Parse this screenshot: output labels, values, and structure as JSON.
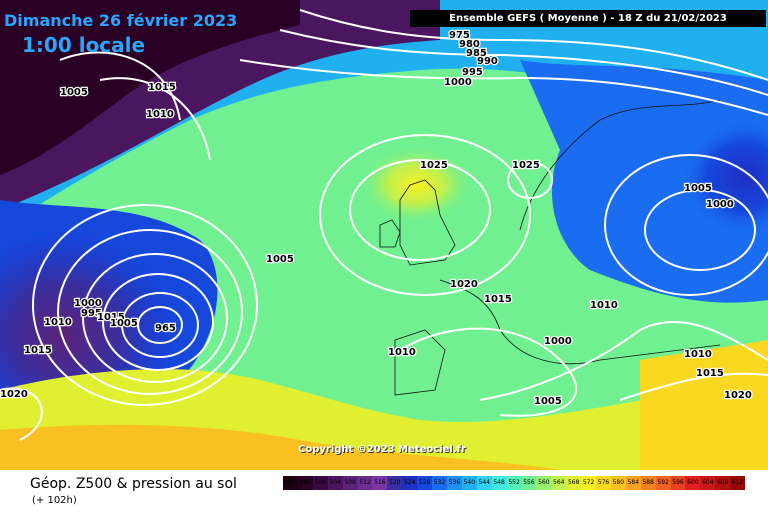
{
  "title": {
    "date": "Dimanche 26 février 2023",
    "time": "1:00 locale"
  },
  "header": {
    "banner": "Ensemble GEFS  ( Moyenne )  -  18 Z du 21/02/2023"
  },
  "copyright": "Copyright ©2023 Meteociel.fr",
  "legend": {
    "title": "Géop. Z500 & pression au sol",
    "subtitle": "(+ 102h)",
    "scale_values": [
      "492",
      "496",
      "500",
      "504",
      "508",
      "512",
      "516",
      "520",
      "524",
      "528",
      "532",
      "536",
      "540",
      "544",
      "548",
      "552",
      "556",
      "560",
      "564",
      "568",
      "572",
      "576",
      "580",
      "584",
      "588",
      "592",
      "596",
      "600",
      "604",
      "608",
      "612"
    ],
    "scale_colors": [
      "#1a0010",
      "#2a0025",
      "#3a0a45",
      "#4b1660",
      "#5c237a",
      "#6a2e8e",
      "#7b34a8",
      "#3a2fa0",
      "#1f2fc0",
      "#1648dc",
      "#1a6cf0",
      "#1e90f0",
      "#20b0f0",
      "#30d0f0",
      "#40e8e0",
      "#50f0b8",
      "#70f090",
      "#98f070",
      "#c0f050",
      "#e0f030",
      "#f8f020",
      "#f8d820",
      "#f8c020",
      "#f8a020",
      "#f08020",
      "#f06020",
      "#e84020",
      "#e02020",
      "#c81818",
      "#b01010",
      "#980808"
    ]
  },
  "isobars": [
    {
      "label": "975"
    },
    {
      "label": "980"
    },
    {
      "label": "985"
    },
    {
      "label": "990"
    },
    {
      "label": "995"
    },
    {
      "label": "1000"
    },
    {
      "label": "1005"
    },
    {
      "label": "1015"
    },
    {
      "label": "1010"
    },
    {
      "label": "1025"
    },
    {
      "label": "1025"
    },
    {
      "label": "1005"
    },
    {
      "label": "1000"
    },
    {
      "label": "1005"
    },
    {
      "label": "1000"
    },
    {
      "label": "995"
    },
    {
      "label": "1010"
    },
    {
      "label": "1015"
    },
    {
      "label": "1020"
    },
    {
      "label": "1015"
    },
    {
      "label": "1010"
    },
    {
      "label": "1010"
    },
    {
      "label": "1000"
    },
    {
      "label": "1010"
    },
    {
      "label": "1015"
    },
    {
      "label": "1005"
    },
    {
      "label": "1020"
    },
    {
      "label": "1020"
    },
    {
      "label": "965"
    },
    {
      "label": "1015"
    },
    {
      "label": "1005"
    }
  ]
}
